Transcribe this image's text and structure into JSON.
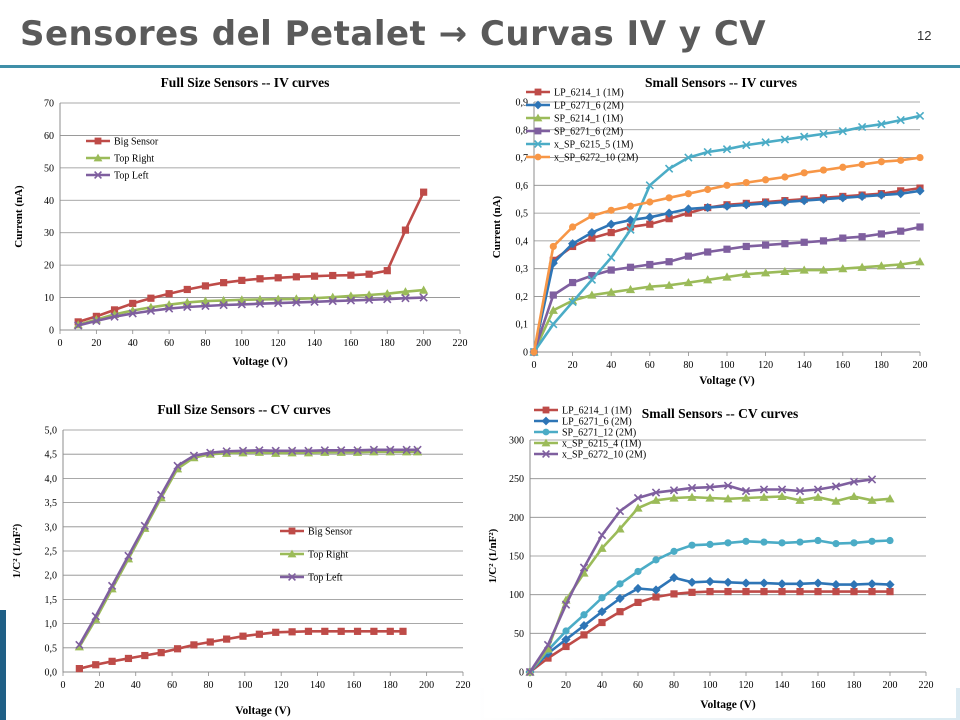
{
  "slide": {
    "title": "Sensores del Petalet → Curvas IV y CV",
    "page_number": "12"
  },
  "chart_data": [
    {
      "id": "full_iv",
      "type": "line",
      "title": "Full Size Sensors -- IV curves",
      "xlabel": "Voltage (V)",
      "ylabel": "Current (nA)",
      "xlim": [
        0,
        220
      ],
      "ylim": [
        0,
        70
      ],
      "xticks": [
        "0",
        "20",
        "40",
        "60",
        "80",
        "100",
        "120",
        "140",
        "160",
        "180",
        "200",
        "220"
      ],
      "yticks": [
        "0",
        "10",
        "20",
        "30",
        "40",
        "50",
        "60",
        "70"
      ],
      "grid": true,
      "legend_position": "upper-left",
      "series": [
        {
          "name": "Big Sensor",
          "color": "#be4b48",
          "marker": "square",
          "x": [
            10,
            20,
            30,
            40,
            50,
            60,
            70,
            80,
            90,
            100,
            110,
            120,
            130,
            140,
            150,
            160,
            170,
            180,
            190,
            200
          ],
          "y": [
            2.5,
            4.2,
            6.2,
            8.2,
            9.8,
            11.2,
            12.5,
            13.6,
            14.6,
            15.3,
            15.8,
            16.1,
            16.4,
            16.6,
            16.8,
            16.9,
            17.2,
            18.3,
            30.8,
            42.5
          ]
        },
        {
          "name": "Top Right",
          "color": "#9bbb59",
          "marker": "triangle",
          "x": [
            10,
            20,
            30,
            40,
            50,
            60,
            70,
            80,
            90,
            100,
            110,
            120,
            130,
            140,
            150,
            160,
            170,
            180,
            190,
            200
          ],
          "y": [
            1.6,
            3.2,
            4.8,
            6.0,
            7.0,
            7.8,
            8.5,
            8.9,
            9.1,
            9.3,
            9.4,
            9.5,
            9.6,
            9.8,
            10.1,
            10.5,
            10.8,
            11.2,
            11.8,
            12.3
          ]
        },
        {
          "name": "Top Left",
          "color": "#7f5f9f",
          "marker": "x",
          "x": [
            10,
            20,
            30,
            40,
            50,
            60,
            70,
            80,
            90,
            100,
            110,
            120,
            130,
            140,
            150,
            160,
            170,
            180,
            190,
            200
          ],
          "y": [
            1.4,
            2.8,
            4.1,
            5.1,
            5.9,
            6.6,
            7.1,
            7.4,
            7.7,
            7.9,
            8.1,
            8.3,
            8.5,
            8.7,
            8.9,
            9.1,
            9.3,
            9.5,
            9.8,
            10.0
          ]
        }
      ]
    },
    {
      "id": "small_iv",
      "type": "line",
      "title": "Small Sensors -- IV curves",
      "xlabel": "Voltage (V)",
      "ylabel": "Current (nA)",
      "xlim": [
        0,
        200
      ],
      "ylim": [
        0,
        0.9
      ],
      "xticks": [
        "0",
        "20",
        "40",
        "60",
        "80",
        "100",
        "120",
        "140",
        "160",
        "180",
        "200"
      ],
      "yticks": [
        "0",
        "0,1",
        "0,2",
        "0,3",
        "0,4",
        "0,5",
        "0,6",
        "0,7",
        "0,8",
        "0,9"
      ],
      "grid": true,
      "legend_position": "upper-left",
      "series": [
        {
          "name": "LP_6214_1 (1M)",
          "color": "#be4b48",
          "marker": "square",
          "x": [
            0,
            10,
            20,
            30,
            40,
            50,
            60,
            70,
            80,
            90,
            100,
            110,
            120,
            130,
            140,
            150,
            160,
            170,
            180,
            190,
            200
          ],
          "y": [
            0,
            0.33,
            0.38,
            0.41,
            0.43,
            0.45,
            0.46,
            0.48,
            0.5,
            0.52,
            0.53,
            0.535,
            0.54,
            0.545,
            0.55,
            0.555,
            0.56,
            0.565,
            0.57,
            0.58,
            0.59
          ]
        },
        {
          "name": "LP_6271_6 (2M)",
          "color": "#2e75b6",
          "marker": "diamond",
          "x": [
            0,
            10,
            20,
            30,
            40,
            50,
            60,
            70,
            80,
            90,
            100,
            110,
            120,
            130,
            140,
            150,
            160,
            170,
            180,
            190,
            200
          ],
          "y": [
            0,
            0.32,
            0.39,
            0.43,
            0.46,
            0.475,
            0.485,
            0.5,
            0.515,
            0.52,
            0.525,
            0.53,
            0.535,
            0.54,
            0.545,
            0.55,
            0.555,
            0.56,
            0.565,
            0.57,
            0.58
          ]
        },
        {
          "name": "SP_6214_1 (1M)",
          "color": "#9bbb59",
          "marker": "triangle",
          "x": [
            0,
            10,
            20,
            30,
            40,
            50,
            60,
            70,
            80,
            90,
            100,
            110,
            120,
            130,
            140,
            150,
            160,
            170,
            180,
            190,
            200
          ],
          "y": [
            0,
            0.15,
            0.185,
            0.205,
            0.215,
            0.225,
            0.235,
            0.24,
            0.25,
            0.26,
            0.27,
            0.28,
            0.285,
            0.29,
            0.295,
            0.295,
            0.3,
            0.305,
            0.31,
            0.315,
            0.325
          ]
        },
        {
          "name": "SP_6271_6 (2M)",
          "color": "#7f5f9f",
          "marker": "square",
          "x": [
            0,
            10,
            20,
            30,
            40,
            50,
            60,
            70,
            80,
            90,
            100,
            110,
            120,
            130,
            140,
            150,
            160,
            170,
            180,
            190,
            200
          ],
          "y": [
            0,
            0.205,
            0.25,
            0.275,
            0.295,
            0.305,
            0.315,
            0.325,
            0.345,
            0.36,
            0.37,
            0.38,
            0.385,
            0.39,
            0.395,
            0.4,
            0.41,
            0.415,
            0.425,
            0.435,
            0.45
          ]
        },
        {
          "name": "x_SP_6215_5 (1M)",
          "color": "#4bacc6",
          "marker": "x",
          "x": [
            0,
            10,
            20,
            30,
            40,
            50,
            60,
            70,
            80,
            90,
            100,
            110,
            120,
            130,
            140,
            150,
            160,
            170,
            180,
            190,
            200
          ],
          "y": [
            0,
            0.1,
            0.18,
            0.26,
            0.34,
            0.44,
            0.6,
            0.66,
            0.7,
            0.72,
            0.73,
            0.745,
            0.755,
            0.765,
            0.775,
            0.785,
            0.795,
            0.81,
            0.82,
            0.835,
            0.85
          ]
        },
        {
          "name": "x_SP_6272_10 (2M)",
          "color": "#f79646",
          "marker": "circle",
          "x": [
            0,
            10,
            20,
            30,
            40,
            50,
            60,
            70,
            80,
            90,
            100,
            110,
            120,
            130,
            140,
            150,
            160,
            170,
            180,
            190,
            200
          ],
          "y": [
            0,
            0.38,
            0.45,
            0.49,
            0.51,
            0.525,
            0.54,
            0.555,
            0.57,
            0.585,
            0.6,
            0.61,
            0.62,
            0.63,
            0.645,
            0.655,
            0.665,
            0.675,
            0.685,
            0.69,
            0.7
          ]
        }
      ]
    },
    {
      "id": "full_cv",
      "type": "line",
      "title": "Full Size Sensors -- CV curves",
      "xlabel": "Voltage (V)",
      "ylabel": "1/C² (1/nF²)",
      "xlim": [
        0,
        220
      ],
      "ylim": [
        0,
        5
      ],
      "xticks": [
        "0",
        "20",
        "40",
        "60",
        "80",
        "100",
        "120",
        "140",
        "160",
        "180",
        "200",
        "220"
      ],
      "yticks": [
        "0,0",
        "0,5",
        "1,0",
        "1,5",
        "2,0",
        "2,5",
        "3,0",
        "3,5",
        "4,0",
        "4,5",
        "5,0"
      ],
      "grid": true,
      "legend_position": "center-right",
      "series": [
        {
          "name": "Big Sensor",
          "color": "#be4b48",
          "marker": "square",
          "x": [
            9,
            18,
            27,
            36,
            45,
            54,
            63,
            72,
            81,
            90,
            99,
            108,
            117,
            126,
            135,
            144,
            153,
            162,
            171,
            180,
            187
          ],
          "y": [
            0.07,
            0.15,
            0.22,
            0.28,
            0.34,
            0.4,
            0.48,
            0.56,
            0.62,
            0.68,
            0.74,
            0.78,
            0.82,
            0.83,
            0.84,
            0.84,
            0.84,
            0.84,
            0.84,
            0.84,
            0.84
          ]
        },
        {
          "name": "Top Right",
          "color": "#9bbb59",
          "marker": "triangle",
          "x": [
            9,
            18,
            27,
            36,
            45,
            54,
            63,
            72,
            81,
            90,
            99,
            108,
            117,
            126,
            135,
            144,
            153,
            162,
            171,
            180,
            189,
            195
          ],
          "y": [
            0.52,
            1.09,
            1.72,
            2.34,
            2.97,
            3.6,
            4.2,
            4.43,
            4.5,
            4.52,
            4.53,
            4.54,
            4.52,
            4.53,
            4.53,
            4.54,
            4.54,
            4.54,
            4.55,
            4.55,
            4.55,
            4.55
          ]
        },
        {
          "name": "Top Left",
          "color": "#7f5f9f",
          "marker": "x",
          "x": [
            9,
            18,
            27,
            36,
            45,
            54,
            63,
            72,
            81,
            90,
            99,
            108,
            117,
            126,
            135,
            144,
            153,
            162,
            171,
            180,
            189,
            195
          ],
          "y": [
            0.56,
            1.15,
            1.78,
            2.4,
            3.02,
            3.66,
            4.26,
            4.47,
            4.53,
            4.56,
            4.57,
            4.58,
            4.57,
            4.57,
            4.57,
            4.58,
            4.58,
            4.58,
            4.59,
            4.59,
            4.59,
            4.59
          ]
        }
      ]
    },
    {
      "id": "small_cv",
      "type": "line",
      "title": "Small Sensors -- CV curves",
      "xlabel": "Voltage (V)",
      "ylabel": "1/C² (1/nF²)",
      "xlim": [
        0,
        220
      ],
      "ylim": [
        0,
        300
      ],
      "xticks": [
        "0",
        "20",
        "40",
        "60",
        "80",
        "100",
        "120",
        "140",
        "160",
        "180",
        "200",
        "220"
      ],
      "yticks": [
        "0",
        "50",
        "100",
        "150",
        "200",
        "250",
        "300"
      ],
      "grid": true,
      "legend_position": "upper-left",
      "series": [
        {
          "name": "LP_6214_1 (1M)",
          "color": "#be4b48",
          "marker": "square",
          "x": [
            0,
            10,
            20,
            30,
            40,
            50,
            60,
            70,
            80,
            90,
            100,
            110,
            120,
            130,
            140,
            150,
            160,
            170,
            180,
            190,
            200
          ],
          "y": [
            0,
            18,
            33,
            48,
            64,
            78,
            90,
            97,
            101,
            103,
            104,
            104,
            104,
            104,
            104,
            104,
            104,
            104,
            104,
            104,
            104
          ]
        },
        {
          "name": "LP_6271_6 (2M)",
          "color": "#2e75b6",
          "marker": "diamond",
          "x": [
            0,
            10,
            20,
            30,
            40,
            50,
            60,
            70,
            80,
            90,
            100,
            110,
            120,
            130,
            140,
            150,
            160,
            170,
            180,
            190,
            200
          ],
          "y": [
            0,
            24,
            42,
            60,
            78,
            95,
            108,
            106,
            122,
            116,
            117,
            116,
            115,
            115,
            114,
            114,
            115,
            113,
            113,
            114,
            113
          ]
        },
        {
          "name": "SP_6271_12 (2M)",
          "color": "#4bacc6",
          "marker": "circle",
          "x": [
            0,
            10,
            20,
            30,
            40,
            50,
            60,
            70,
            80,
            90,
            100,
            110,
            120,
            130,
            140,
            150,
            160,
            170,
            180,
            190,
            200
          ],
          "y": [
            0,
            28,
            53,
            74,
            96,
            114,
            130,
            145,
            156,
            164,
            165,
            167,
            169,
            168,
            167,
            168,
            170,
            166,
            167,
            169,
            170
          ]
        },
        {
          "name": "x_SP_6215_4 (1M)",
          "color": "#9bbb59",
          "marker": "triangle",
          "x": [
            0,
            10,
            20,
            30,
            40,
            50,
            60,
            70,
            80,
            90,
            100,
            110,
            120,
            130,
            140,
            150,
            160,
            170,
            180,
            190,
            200
          ],
          "y": [
            0,
            30,
            93,
            128,
            160,
            185,
            212,
            222,
            225,
            226,
            225,
            224,
            225,
            226,
            227,
            222,
            226,
            221,
            227,
            222,
            224
          ]
        },
        {
          "name": "x_SP_6272_10 (2M)",
          "color": "#7f5f9f",
          "marker": "x",
          "x": [
            0,
            10,
            20,
            30,
            40,
            50,
            60,
            70,
            80,
            90,
            100,
            110,
            120,
            130,
            140,
            150,
            160,
            170,
            180,
            190
          ],
          "y": [
            0,
            35,
            87,
            135,
            177,
            208,
            225,
            232,
            235,
            238,
            239,
            241,
            234,
            236,
            236,
            234,
            236,
            240,
            246,
            249
          ]
        }
      ]
    }
  ]
}
